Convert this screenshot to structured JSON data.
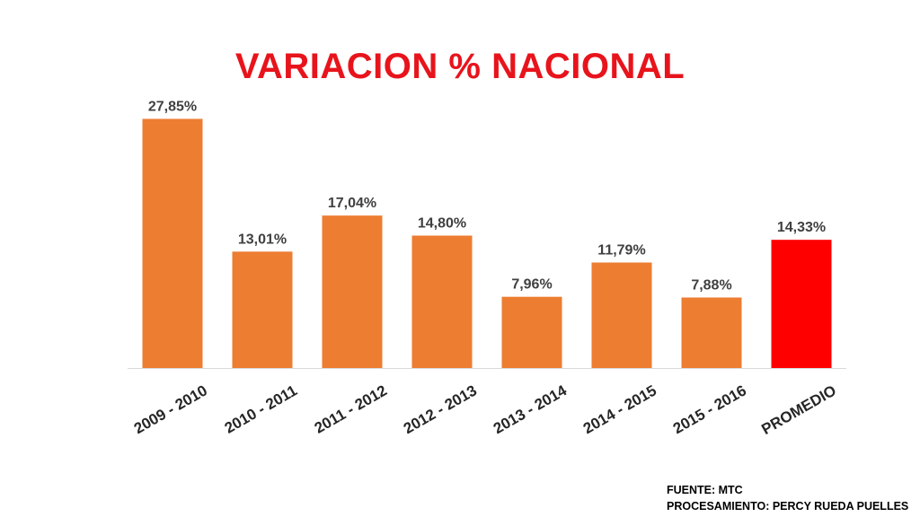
{
  "chart_data": {
    "type": "bar",
    "title": "VARIACION % NACIONAL",
    "categories": [
      "2009 - 2010",
      "2010 - 2011",
      "2011 - 2012",
      "2012 - 2013",
      "2013 - 2014",
      "2014 - 2015",
      "2015 - 2016",
      "PROMEDIO"
    ],
    "values": [
      27.85,
      13.01,
      17.04,
      14.8,
      7.96,
      11.79,
      7.88,
      14.33
    ],
    "data_labels": [
      "27,85%",
      "13,01%",
      "17,04%",
      "14,80%",
      "7,96%",
      "11,79%",
      "7,88%",
      "14,33%"
    ],
    "colors": [
      "#ed7d31",
      "#ed7d31",
      "#ed7d31",
      "#ed7d31",
      "#ed7d31",
      "#ed7d31",
      "#ed7d31",
      "#ff0000"
    ],
    "ylim": [
      0,
      30
    ],
    "grid": false,
    "xlabel": "",
    "ylabel": ""
  },
  "footer": {
    "source": "FUENTE: MTC",
    "processing": "PROCESAMIENTO: PERCY RUEDA PUELLES"
  }
}
